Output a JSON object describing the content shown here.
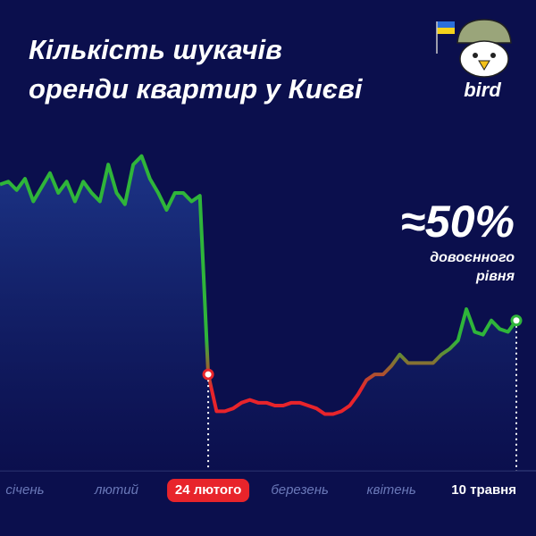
{
  "chart_data": {
    "type": "line",
    "title_lines": [
      "Кількість шукачів",
      "оренди квартир у Києві"
    ],
    "brand": "bird",
    "annotation": {
      "value": "≈50%",
      "lines": [
        "довоєнного",
        "рівня"
      ]
    },
    "categories": [
      null,
      null,
      null,
      "січень",
      null,
      null,
      null,
      null,
      null,
      null,
      null,
      null,
      null,
      null,
      "лютий",
      null,
      null,
      null,
      null,
      null,
      null,
      null,
      null,
      null,
      null,
      "24 лютого",
      null,
      null,
      null,
      null,
      null,
      null,
      null,
      null,
      null,
      null,
      "березень",
      null,
      null,
      null,
      null,
      null,
      null,
      null,
      null,
      null,
      null,
      "квітень",
      null,
      null,
      null,
      null,
      null,
      null,
      null,
      null,
      null,
      null,
      null,
      null,
      null,
      null,
      "10 травня"
    ],
    "values": [
      101,
      102,
      99,
      103,
      95,
      100,
      105,
      98,
      102,
      95,
      102,
      98,
      95,
      108,
      98,
      94,
      108,
      111,
      103,
      98,
      92,
      98,
      98,
      95,
      97,
      34,
      21,
      21,
      22,
      24,
      25,
      24,
      24,
      23,
      23,
      24,
      24,
      23,
      22,
      20,
      20,
      21,
      23,
      27,
      32,
      34,
      34,
      37,
      41,
      38,
      38,
      38,
      38,
      41,
      43,
      46,
      57,
      49,
      48,
      53,
      50,
      49,
      53
    ],
    "ylim": [
      0,
      115
    ],
    "line_colors": {
      "high": "#2fb53a",
      "low": "#e8242b"
    },
    "markers": [
      {
        "index": 25,
        "color": "#e8242b"
      },
      {
        "index": 62,
        "color": "#2fb53a"
      }
    ]
  }
}
